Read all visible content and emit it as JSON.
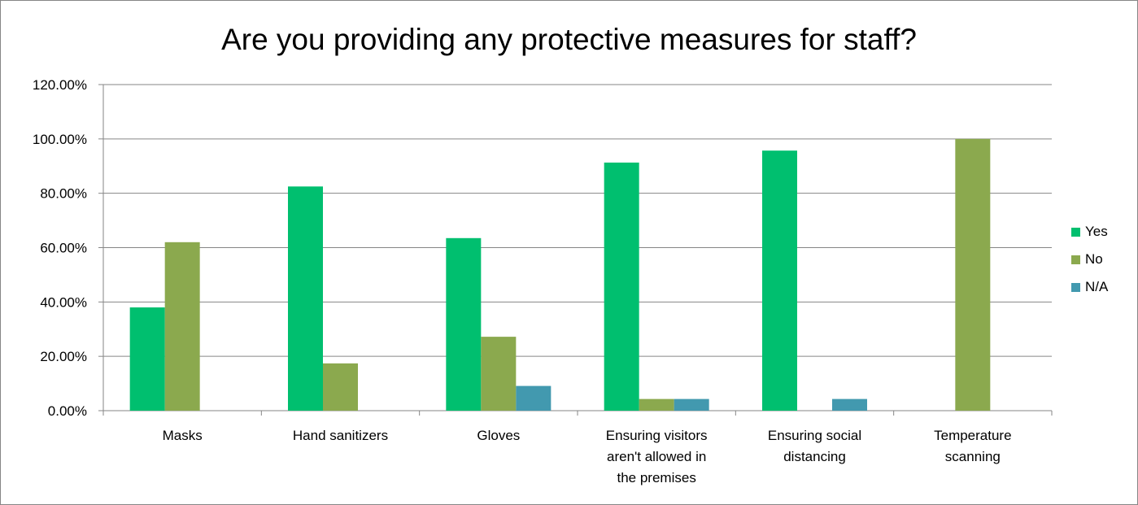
{
  "chart_data": {
    "type": "bar",
    "title": "Are you providing any protective measures for staff?",
    "categories": [
      [
        "Masks"
      ],
      [
        "Hand sanitizers"
      ],
      [
        "Gloves"
      ],
      [
        "Ensuring visitors",
        "aren't allowed in",
        "the premises"
      ],
      [
        "Ensuring social",
        "distancing"
      ],
      [
        "Temperature",
        "scanning"
      ]
    ],
    "series": [
      {
        "name": "Yes",
        "color": "#00BF6F",
        "values": [
          38,
          82.5,
          63.5,
          91.3,
          95.7,
          0
        ]
      },
      {
        "name": "No",
        "color": "#8BA94E",
        "values": [
          62,
          17.4,
          27.2,
          4.3,
          0,
          100
        ]
      },
      {
        "name": "N/A",
        "color": "#4299AF",
        "values": [
          0,
          0,
          9.1,
          4.3,
          4.3,
          0
        ]
      }
    ],
    "ylim": [
      0,
      120
    ],
    "yticks": [
      0,
      20,
      40,
      60,
      80,
      100,
      120
    ],
    "ytick_labels": [
      "0.00%",
      "20.00%",
      "40.00%",
      "60.00%",
      "80.00%",
      "100.00%",
      "120.00%"
    ],
    "grid": true,
    "legend_position": "right"
  }
}
